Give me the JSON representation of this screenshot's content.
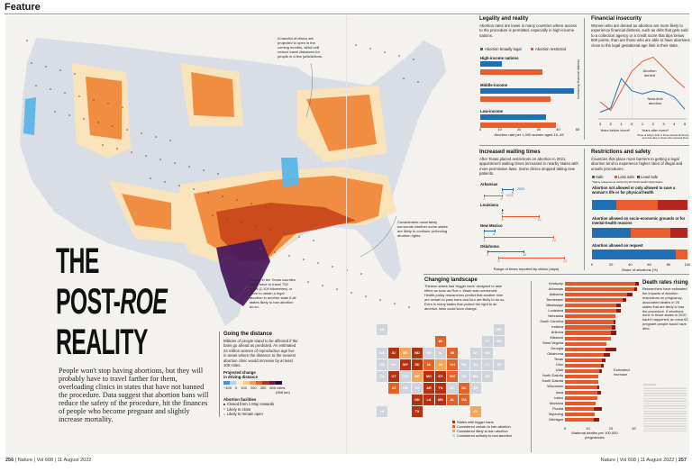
{
  "header": {
    "section": "Feature"
  },
  "footer": {
    "left_page": "256",
    "left_text": "Nature | Vol 608 | 11 August 2022",
    "right_text": "Nature | Vol 608 | 11 August 2022 |",
    "right_page": "257"
  },
  "title": {
    "line1": "THE",
    "line2a": "POST-",
    "line2b": "ROE",
    "line3": "REALITY"
  },
  "intro": "People won't stop having abortions, but they will probably have to travel farther for them, overloading clinics in states that have not banned the procedure. Data suggest that abortion bans will reduce the safety of the procedure, hit the finances of people who become pregnant and slightly increase mortality.",
  "map": {
    "annotation_clinics": "A handful of clinics are projected to open in the coming months, which will reduce travel distances for people in a few jurisdictions.",
    "annotation_uncertainty": "Considerable uncertainty surrounds whether some states are likely to continue protecting abortion rights.",
    "annotation_texas": "People in ten Texas counties might have to travel 700 miles (1,100 kilometres) or more to obtain a legal abortion in another state if all states likely to ban abortion do so.",
    "colors": {
      "land": "#d9dde6",
      "decrease": "#5bb5e6",
      "light": "#fbe3b8",
      "mid": "#f0883a",
      "high": "#c8481a",
      "max": "#4a1a5a"
    }
  },
  "distance": {
    "title": "Going the distance",
    "body": "Millions of people stand to be affected if the bans go ahead as predicted. An estimated 24 million women of reproductive age live in areas where the distance to the nearest abortion clinic would increase by at least 100 miles.",
    "scale_title": "Projected change in driving distance",
    "ticks": [
      "−100",
      "0",
      "100",
      "200",
      "400",
      "600 miles"
    ],
    "km": "(966 km)",
    "scale_colors": [
      "#3d9ad6",
      "#a8d6f0",
      "#fcebc9",
      "#f9c98c",
      "#f29a4f",
      "#e0662a",
      "#b03a1c",
      "#6a1f45",
      "#2a0f3c"
    ],
    "facilities_title": "Abortion facilities",
    "facilities": [
      "Closed from 1 May onwards",
      "Likely to close",
      "Likely to remain open"
    ]
  },
  "legality": {
    "title": "Legality and reality",
    "body": "Abortion rates are lower in many countries where access to the procedure is permitted, especially in high-income nations.",
    "colors": {
      "legal": "#1f6fb5",
      "restricted": "#ea5c2b"
    }
  },
  "financial": {
    "title": "Financial insecurity",
    "body": "Women who are denied an abortion are more likely to experience financial distress, such as debt that gets sold to a collection agency or a credit score that dips below 600 points, than are those who are able to have abortions close to the legal gestational age limit in their state.",
    "footnote": "*Date of baby's birth in those denied abortions, and visa date in those who received them."
  },
  "waiting": {
    "title": "Increased waiting times",
    "body": "After Texas placed restrictions on abortion in 2021, appointment waiting times increased in nearby states with more permissive laws. Some clinics stopped taking new patients."
  },
  "safety": {
    "title": "Restrictions and safety",
    "body": "Countries that place more barriers to getting a legal abortion tend to experience higher rates of illegal and unsafe procedures.",
    "footnote": "*Safety categories as defined by the World Health Organization."
  },
  "landscape": {
    "title": "Changing landscape",
    "body": "Thirteen states had 'trigger bans' designed to take effect as soon as Roe v. Wade was overturned. Health-policy researchers predict that another nine are certain to pass bans and four are likely to do so. Even in many states that protect the right to an abortion, laws could soon change.",
    "legend": [
      {
        "label": "States with trigger bans",
        "color": "#b5310f"
      },
      {
        "label": "Considered certain to ban abortion",
        "color": "#e2632a"
      },
      {
        "label": "Considered likely to ban abortion",
        "color": "#f3a75c"
      },
      {
        "label": "Considered unlikely to ban abortion",
        "color": "#cfd3dc"
      }
    ],
    "states": {
      "trigger": [
        "ID",
        "WY",
        "ND",
        "SD",
        "UT",
        "MO",
        "OK",
        "TX",
        "AR",
        "LA",
        "MS",
        "TN",
        "KY"
      ],
      "certain": [
        "WI",
        "MI",
        "IA",
        "OH",
        "WV",
        "AZ",
        "AL",
        "GA",
        "SC"
      ],
      "likely": [
        "MT",
        "NE",
        "IN",
        "FL"
      ]
    }
  },
  "deaths": {
    "title": "Death rates rising",
    "body": "Researchers have estimated the impacts of abortion restrictions on pregnancy-associated deaths in 26 states that are likely to ban the procedure. If abortions done in those states in 2020 hadn't happened, an extra 64 pregnant people would have died.",
    "annotation": "Estimated increase",
    "sources": "SOURCES:"
  },
  "chart_data": [
    {
      "type": "bar",
      "title": "Legality and reality",
      "xlabel": "Abortion rate per 1,000 women aged 15–49",
      "xlim": [
        0,
        50
      ],
      "ticks": [
        0,
        10,
        20,
        30,
        40,
        50
      ],
      "legend": [
        "Abortion broadly legal",
        "Abortion restricted"
      ],
      "legend_placement": "top",
      "categories": [
        "High-income nations",
        "Middle-income",
        "Low-income"
      ],
      "series": [
        {
          "name": "Abortion broadly legal",
          "values": [
            11,
            48,
            34
          ]
        },
        {
          "name": "Abortion restricted",
          "values": [
            32,
            36,
            39
          ]
        }
      ]
    },
    {
      "type": "line",
      "title": "Financial insecurity",
      "ylabel": "Increasing financial distress",
      "xlabel_before": "Years before event*",
      "xlabel_after": "Years after event*",
      "x": [
        -3,
        -2,
        -1,
        0,
        1,
        2,
        3,
        4,
        5
      ],
      "tick_labels": [
        "3",
        "2",
        "1",
        "0",
        "1",
        "2",
        "3",
        "4",
        "5"
      ],
      "series": [
        {
          "name": "Abortion denied",
          "color": "#ea5c2b",
          "values": [
            0.22,
            0.08,
            0.4,
            0.72,
            0.88,
            0.95,
            0.78,
            0.6,
            0.45
          ]
        },
        {
          "name": "Near-limit abortion",
          "color": "#1f6fb5",
          "values": [
            0.05,
            0.12,
            0.6,
            0.4,
            0.35,
            0.4,
            0.38,
            0.3,
            0.1
          ]
        }
      ]
    },
    {
      "type": "range",
      "title": "Increased waiting times",
      "xlabel": "Range of times reported by clinics (days)",
      "xlim": [
        0,
        25
      ],
      "series_names": [
        "2020",
        "2021"
      ],
      "rows": [
        {
          "state": "Arkansas",
          "y2020": [
            6,
            9
          ],
          "y2021": [
            1,
            6
          ]
        },
        {
          "state": "Louisiana",
          "y2020": [
            6,
            6
          ],
          "y2021": [
            6,
            16
          ]
        },
        {
          "state": "New Mexico",
          "y2020": [
            1,
            4
          ],
          "y2021": [
            1,
            20
          ]
        },
        {
          "state": "Oklahoma",
          "y2020": [
            2,
            12
          ],
          "y2021": [
            5,
            23
          ]
        }
      ]
    },
    {
      "type": "bar",
      "stacked": true,
      "title": "Restrictions and safety",
      "xlabel": "Share of abortions (%)",
      "xlim": [
        0,
        100
      ],
      "ticks": [
        0,
        20,
        40,
        60,
        80,
        100
      ],
      "legend": [
        {
          "name": "Safe",
          "color": "#1f6fb5"
        },
        {
          "name": "Less safe",
          "color": "#ea5c2b"
        },
        {
          "name": "Least safe",
          "color": "#b3261e"
        }
      ],
      "categories": [
        "Abortion not allowed or only allowed to save a woman's life or for physical health",
        "Abortion allowed on socio-economic grounds or for mental-health reasons",
        "Abortion allowed on request"
      ],
      "series": [
        {
          "name": "Safe",
          "values": [
            25,
            41,
            88
          ]
        },
        {
          "name": "Less safe",
          "values": [
            44,
            41,
            12
          ]
        },
        {
          "name": "Least safe",
          "values": [
            31,
            18,
            0
          ]
        }
      ]
    },
    {
      "type": "bar",
      "title": "Death rates rising",
      "xlabel": "Maternal deaths per 100,000 pregnancies",
      "xlim": [
        0,
        32
      ],
      "ticks": [
        0,
        10,
        20,
        30
      ],
      "categories": [
        "Kentucky",
        "Arkansas",
        "Alabama",
        "Tennessee",
        "Mississippi",
        "Louisiana",
        "Nebraska",
        "South Carolina",
        "Indiana",
        "Arizona",
        "Missouri",
        "West Virginia",
        "Georgia",
        "Oklahoma",
        "Texas",
        "Ohio",
        "Utah",
        "North Dakota",
        "South Dakota",
        "Wisconsin",
        "Iowa",
        "Idaho",
        "Montana",
        "Florida",
        "Wyoming",
        "Michigan"
      ],
      "series": [
        {
          "name": "Current",
          "color": "#e8582a",
          "values": [
            31,
            30.5,
            27.5,
            25.5,
            23,
            23,
            22,
            21.5,
            21,
            20.5,
            20,
            18,
            18,
            17.5,
            16.5,
            16,
            15.5,
            14.5,
            14.5,
            14.5,
            14.5,
            14,
            13.5,
            13,
            13,
            13
          ]
        },
        {
          "name": "Estimated increase",
          "color": "#8e1a14",
          "values": [
            1.5,
            1.5,
            2.5,
            1.5,
            2,
            2,
            0,
            1,
            1.5,
            2.5,
            0,
            0,
            5,
            2.5,
            1.5,
            1.5,
            1,
            0,
            0,
            1,
            1.5,
            0,
            0,
            3.5,
            0,
            2.5
          ]
        }
      ]
    }
  ]
}
